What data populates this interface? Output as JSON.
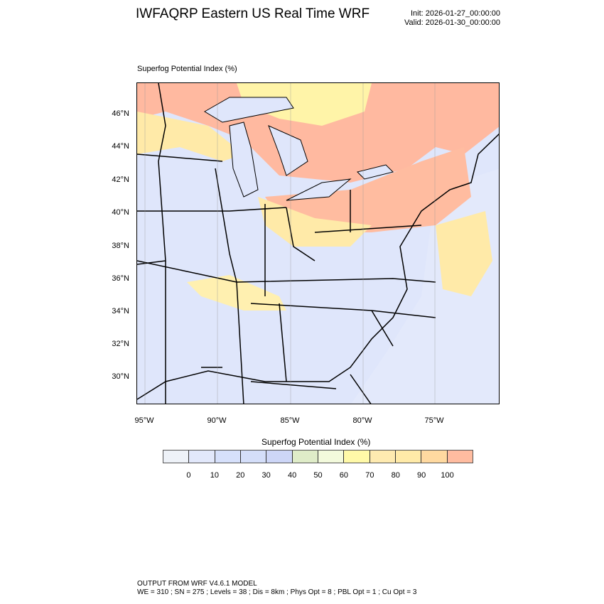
{
  "header": {
    "title": "IWFAQRP Eastern US Real Time WRF",
    "init": "Init: 2026-01-27_00:00:00",
    "valid": "Valid: 2026-01-30_00:00:00"
  },
  "field_label": "Superfog Potential Index   (%)",
  "map": {
    "lat_labels": [
      "46°N",
      "44°N",
      "42°N",
      "40°N",
      "38°N",
      "36°N",
      "34°N",
      "32°N",
      "30°N"
    ],
    "lon_labels": [
      "95°W",
      "90°W",
      "85°W",
      "80°W",
      "75°W"
    ],
    "land_color": "#dfe6fb",
    "high_color": "#ffb9a0",
    "mid_color": "#ffeaa8"
  },
  "colorbar": {
    "title": "Superfog Potential Index  (%)",
    "labels": [
      "0",
      "10",
      "20",
      "30",
      "40",
      "50",
      "60",
      "70",
      "80",
      "90",
      "100"
    ],
    "colors": [
      "#eef2f8",
      "#e2e8fb",
      "#d6e0fb",
      "#d4def9",
      "#cdd6f7",
      "#dfecc8",
      "#f3fadc",
      "#fff9a8",
      "#feeab0",
      "#ffeaa8",
      "#ffd9a0",
      "#ffbca0"
    ]
  },
  "footer": {
    "line1": "OUTPUT FROM WRF V4.6.1 MODEL",
    "line2": "WE = 310 ; SN = 275 ; Levels = 38 ; Dis = 8km ; Phys Opt = 8 ; PBL Opt = 1 ; Cu Opt = 3"
  }
}
